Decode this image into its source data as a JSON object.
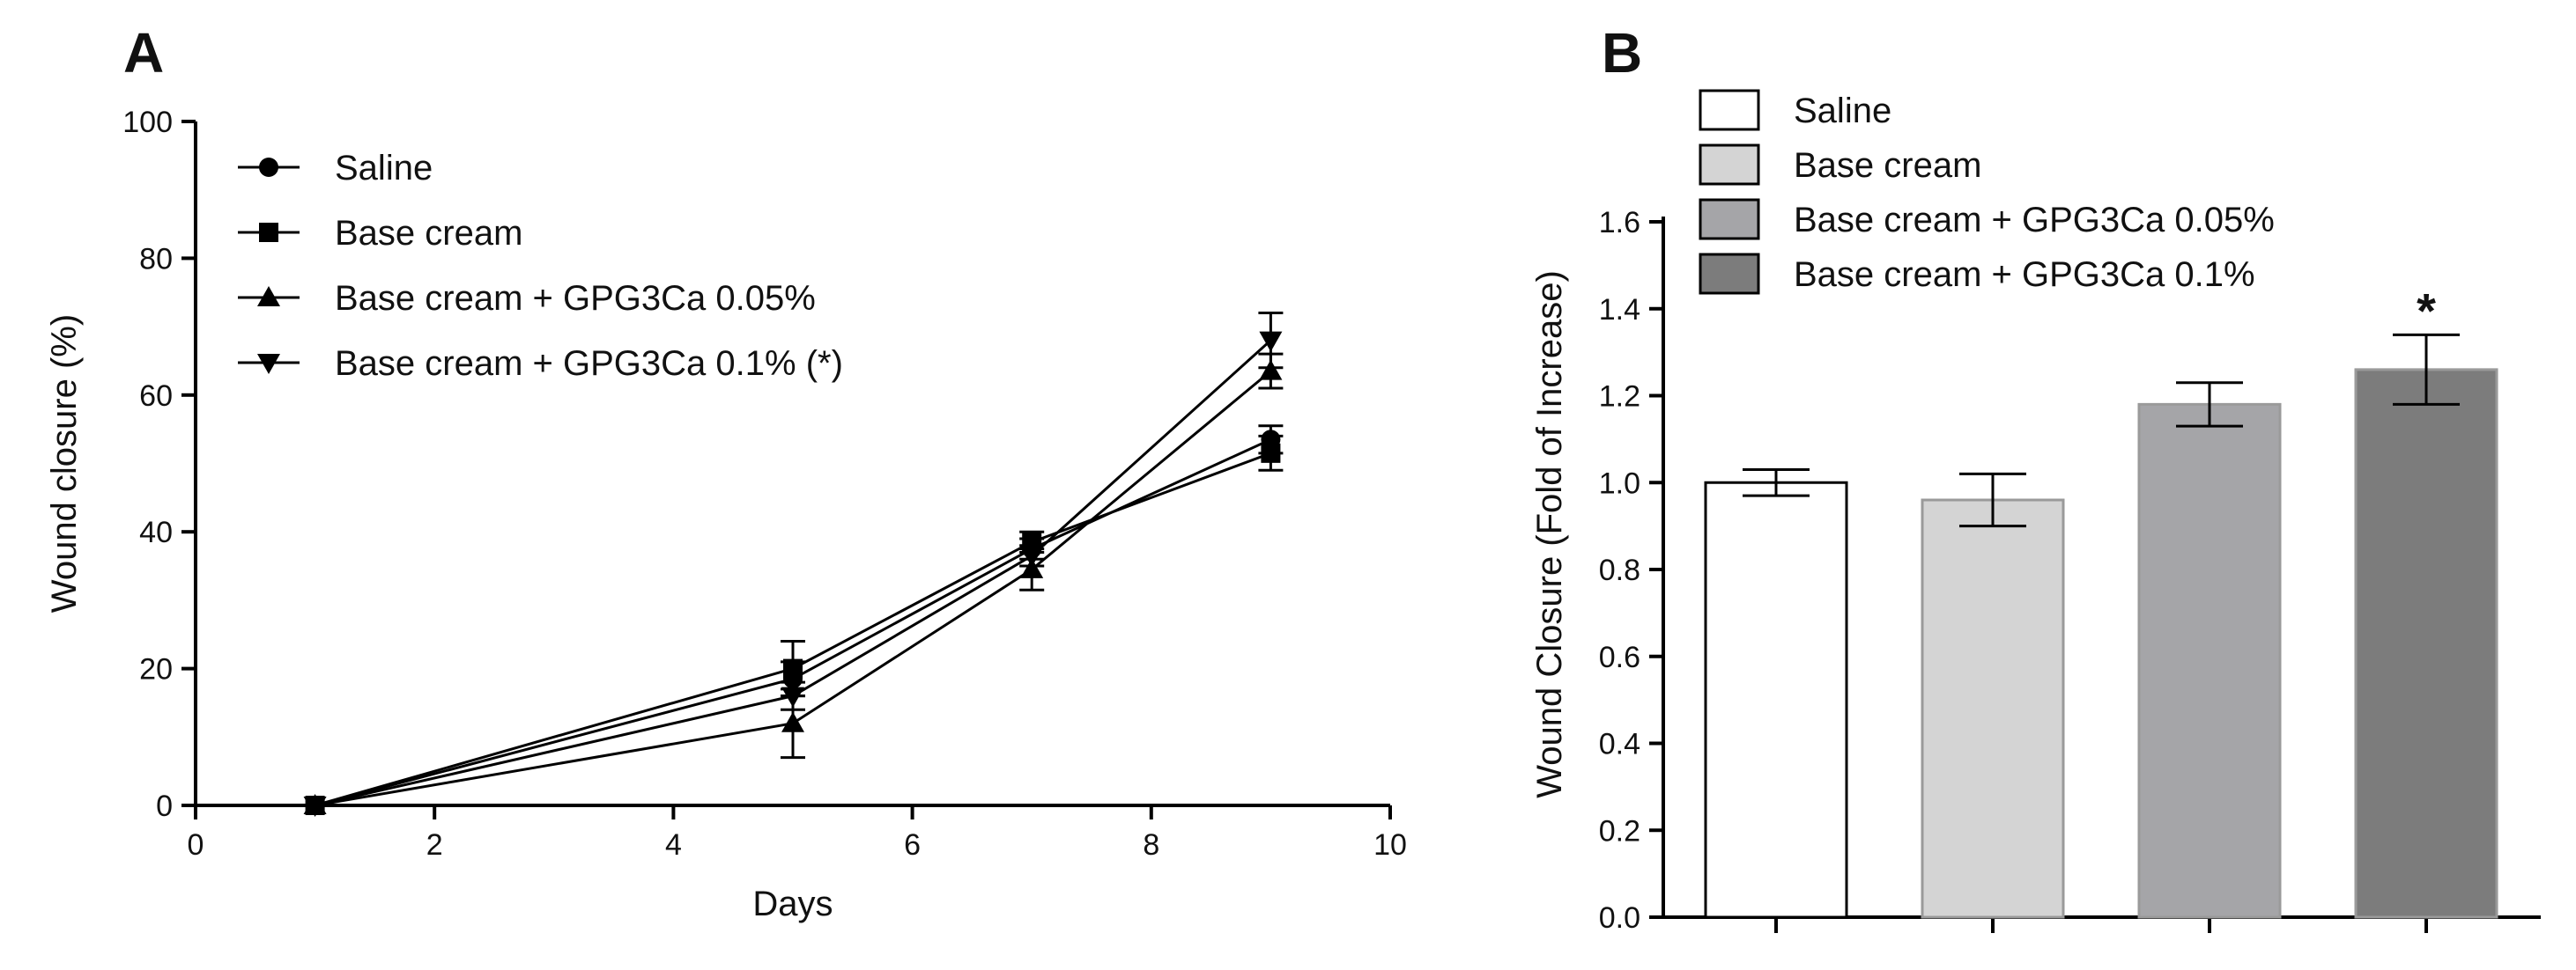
{
  "panels": {
    "a": {
      "letter": "A"
    },
    "b": {
      "letter": "B"
    }
  },
  "colors": {
    "ink": "#000000",
    "saline": "#ffffff",
    "base_cream": "#d4d4d4",
    "gpg_005": "#a5a5a8",
    "gpg_01": "#7c7c7c"
  },
  "chart_data": [
    {
      "type": "line",
      "panel": "A",
      "xlabel": "Days",
      "ylabel": "Wound closure (%)",
      "xlim": [
        0,
        10
      ],
      "ylim": [
        0,
        100
      ],
      "xticks": [
        0,
        2,
        4,
        6,
        8,
        10
      ],
      "yticks": [
        0,
        20,
        40,
        60,
        80,
        100
      ],
      "legend_position": "top-left",
      "x": [
        1,
        5,
        7,
        9
      ],
      "series": [
        {
          "name": "Saline",
          "marker": "circle",
          "values": [
            0,
            18.5,
            37.5,
            53.5
          ],
          "errors": [
            0,
            2.5,
            1.5,
            2.0
          ]
        },
        {
          "name": "Base cream",
          "marker": "square",
          "values": [
            0,
            20,
            38.5,
            51.5
          ],
          "errors": [
            0,
            4.0,
            1.5,
            2.5
          ]
        },
        {
          "name": "Base cream + GPG3Ca 0.05%",
          "marker": "triangle-up",
          "values": [
            0,
            12,
            34.5,
            63.5
          ],
          "errors": [
            0,
            5.0,
            3.0,
            2.5
          ]
        },
        {
          "name": "Base cream + GPG3Ca 0.1% (*)",
          "marker": "triangle-down",
          "values": [
            0,
            16,
            36.5,
            68
          ],
          "errors": [
            0,
            2.0,
            1.5,
            4.0
          ]
        }
      ]
    },
    {
      "type": "bar",
      "panel": "B",
      "ylabel": "Wound Closure (Fold of Increase)",
      "ylim": [
        0,
        1.6
      ],
      "yticks": [
        "0.0",
        "0.2",
        "0.4",
        "0.6",
        "0.8",
        "1.0",
        "1.2",
        "1.4",
        "1.6"
      ],
      "legend_position": "top",
      "categories": [
        "Saline",
        "Base cream",
        "Base cream + GPG3Ca 0.05%",
        "Base cream + GPG3Ca 0.1%"
      ],
      "values": [
        1.0,
        0.96,
        1.18,
        1.26
      ],
      "errors": [
        0.03,
        0.06,
        0.05,
        0.08
      ],
      "annotations": [
        "",
        "",
        "",
        "*"
      ]
    }
  ]
}
